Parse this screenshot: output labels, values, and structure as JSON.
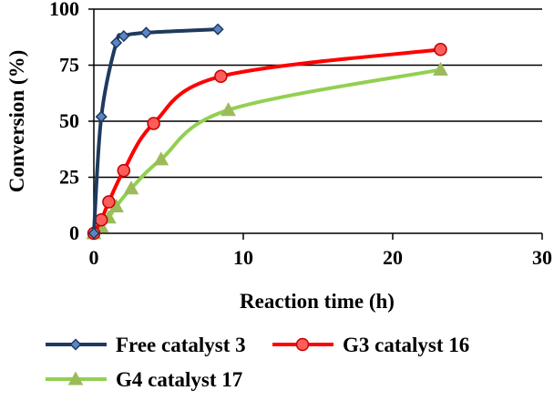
{
  "chart_data": {
    "type": "line",
    "title": "",
    "xlabel": "Reaction time (h)",
    "ylabel": "Conversion (%)",
    "xlim": [
      0,
      30
    ],
    "ylim": [
      0,
      100
    ],
    "x_ticks": [
      "0",
      "10",
      "20",
      "30"
    ],
    "y_ticks": [
      "0",
      "25",
      "50",
      "75",
      "100"
    ],
    "grid": "horizontal",
    "legend_position": "bottom",
    "series": [
      {
        "name": "Free catalyst 3",
        "color": "#1f3a5f",
        "marker": "diamond",
        "x": [
          0,
          0.5,
          1.5,
          2,
          3.5,
          8.3
        ],
        "y": [
          0,
          52,
          85,
          88,
          89.5,
          91
        ]
      },
      {
        "name": "G3 catalyst 16",
        "color": "#ff0000",
        "marker": "circle",
        "x": [
          0,
          0.5,
          1,
          2,
          4,
          8.5,
          23.2
        ],
        "y": [
          0,
          6,
          14,
          28,
          49,
          70,
          82
        ]
      },
      {
        "name": "G4 catalyst 17",
        "color": "#92d050",
        "marker": "triangle",
        "x": [
          0,
          0.5,
          1,
          1.5,
          2.5,
          4.5,
          9,
          23.2
        ],
        "y": [
          0,
          3,
          7,
          12,
          20,
          33,
          55,
          73
        ]
      }
    ]
  }
}
